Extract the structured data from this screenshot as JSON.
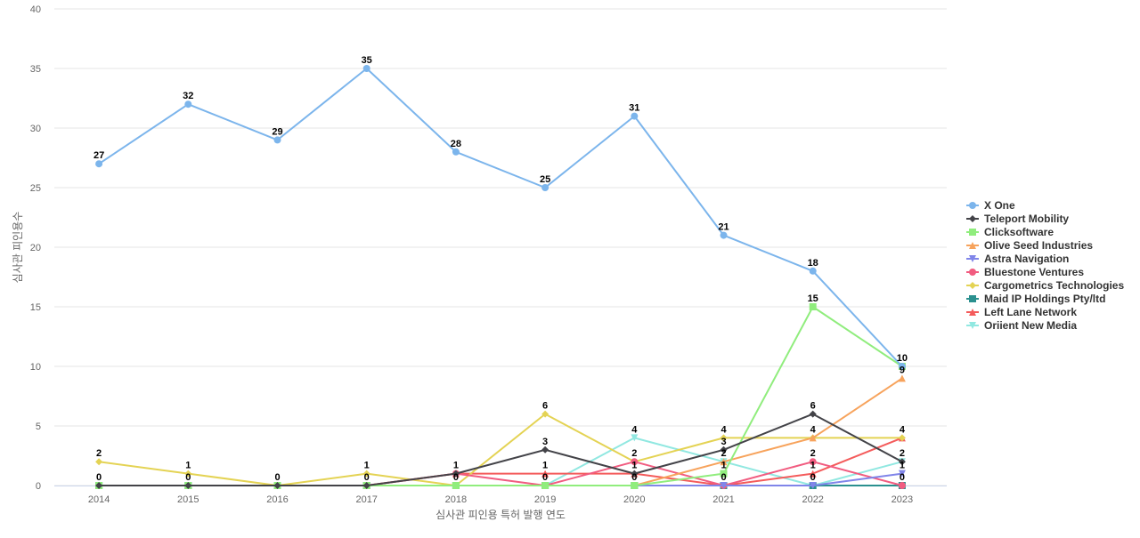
{
  "chart_data": {
    "type": "line",
    "title": "",
    "xlabel": "심사관 피인용 특허 발행 연도",
    "ylabel": "심사관 피인용수",
    "x": [
      2014,
      2015,
      2016,
      2017,
      2018,
      2019,
      2020,
      2021,
      2022,
      2023
    ],
    "ylim": [
      0,
      40
    ],
    "yticks": [
      0,
      5,
      10,
      15,
      20,
      25,
      30,
      35,
      40
    ],
    "grid": true,
    "legend_position": "right",
    "series": [
      {
        "name": "X One",
        "color": "#7cb5ec",
        "marker": "circle",
        "values": [
          27,
          32,
          29,
          35,
          28,
          25,
          31,
          21,
          18,
          10
        ]
      },
      {
        "name": "Teleport Mobility",
        "color": "#434348",
        "marker": "diamond",
        "values": [
          0,
          0,
          0,
          0,
          1,
          3,
          1,
          3,
          6,
          2
        ]
      },
      {
        "name": "Clicksoftware",
        "color": "#90ed7d",
        "marker": "square",
        "values": [
          0,
          0,
          0,
          0,
          0,
          0,
          0,
          1,
          15,
          10
        ]
      },
      {
        "name": "Olive Seed Industries",
        "color": "#f7a35c",
        "marker": "triangle",
        "values": [
          0,
          0,
          0,
          0,
          0,
          0,
          0,
          2,
          4,
          9
        ]
      },
      {
        "name": "Astra Navigation",
        "color": "#8085e9",
        "marker": "triangle-down",
        "values": [
          0,
          0,
          0,
          0,
          0,
          0,
          0,
          0,
          0,
          1
        ]
      },
      {
        "name": "Bluestone Ventures",
        "color": "#f15c80",
        "marker": "circle",
        "values": [
          0,
          0,
          0,
          0,
          1,
          0,
          2,
          0,
          2,
          0
        ]
      },
      {
        "name": "Cargometrics Technologies",
        "color": "#e4d354",
        "marker": "diamond",
        "values": [
          2,
          1,
          0,
          1,
          0,
          6,
          2,
          4,
          4,
          4
        ]
      },
      {
        "name": "Maid IP Holdings Pty/ltd",
        "color": "#2b908f",
        "marker": "square",
        "values": [
          0,
          0,
          0,
          0,
          0,
          0,
          0,
          0,
          0,
          0
        ]
      },
      {
        "name": "Left Lane Network",
        "color": "#f45b5b",
        "marker": "triangle",
        "values": [
          0,
          0,
          0,
          0,
          1,
          1,
          1,
          0,
          1,
          4
        ]
      },
      {
        "name": "Oriient New Media",
        "color": "#91e8e1",
        "marker": "triangle-down",
        "values": [
          0,
          0,
          0,
          0,
          0,
          0,
          4,
          2,
          0,
          2
        ]
      }
    ],
    "data_labels": [
      {
        "x": 2014,
        "labels": [
          27,
          2,
          0
        ]
      },
      {
        "x": 2015,
        "labels": [
          32,
          1,
          0
        ]
      },
      {
        "x": 2016,
        "labels": [
          29,
          0
        ]
      },
      {
        "x": 2017,
        "labels": [
          35,
          1,
          0
        ]
      },
      {
        "x": 2018,
        "labels": [
          28,
          1,
          0
        ]
      },
      {
        "x": 2019,
        "labels": [
          25,
          6,
          3,
          1,
          0
        ]
      },
      {
        "x": 2020,
        "labels": [
          31,
          4,
          2,
          1,
          0
        ]
      },
      {
        "x": 2021,
        "labels": [
          21,
          4,
          3,
          2,
          1,
          0
        ]
      },
      {
        "x": 2022,
        "labels": [
          18,
          15,
          6,
          4,
          2,
          1,
          0
        ]
      },
      {
        "x": 2023,
        "labels": [
          10,
          9,
          4,
          2,
          1,
          0
        ]
      }
    ]
  }
}
